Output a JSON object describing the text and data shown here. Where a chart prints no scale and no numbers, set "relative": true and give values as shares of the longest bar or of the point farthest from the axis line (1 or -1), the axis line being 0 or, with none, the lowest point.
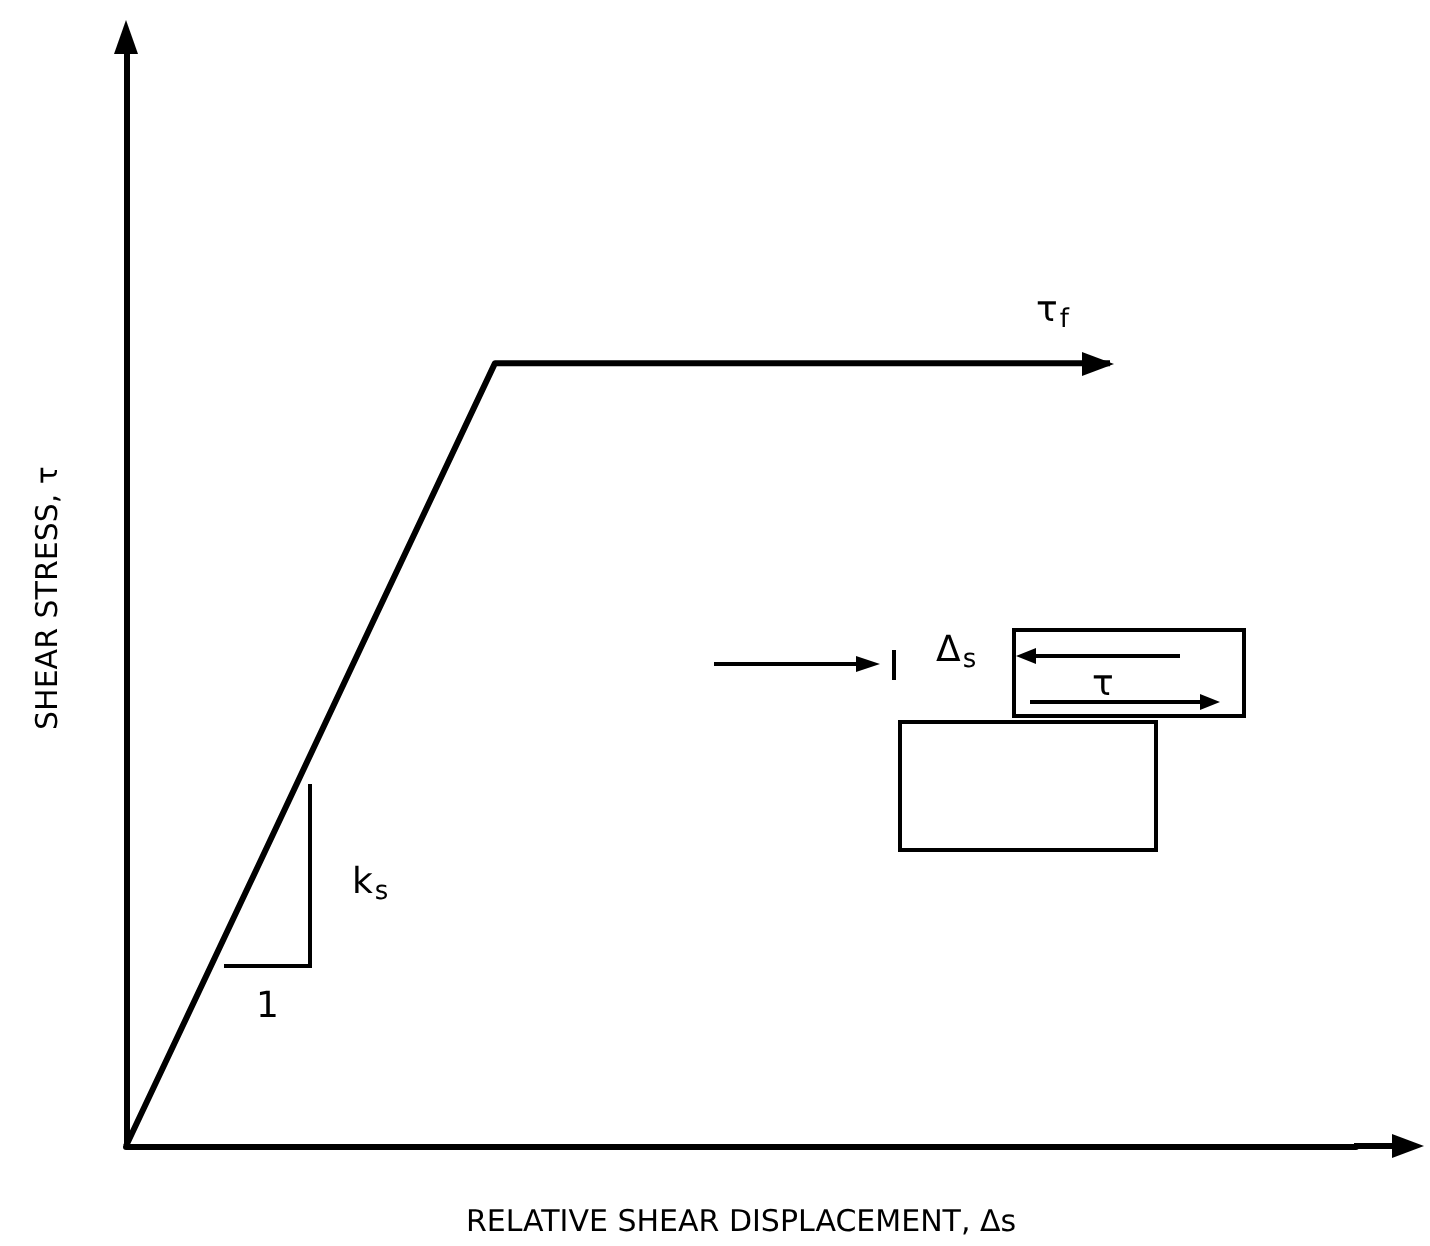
{
  "chart_data": {
    "type": "line",
    "relative": true,
    "xlabel": "RELATIVE SHEAR DISPLACEMENT, Δs",
    "ylabel": "SHEAR STRESS, τ",
    "categories": [
      null,
      null,
      null,
      null,
      null,
      null,
      null,
      null,
      null,
      null,
      null
    ],
    "series": [
      {
        "color": "#000000",
        "values": [
          0,
          0.333,
          0.667,
          1,
          1,
          1,
          1,
          1,
          1,
          null,
          null
        ]
      }
    ],
    "annotations": [
      "τ$_{f}$",
      "k$_{s}$",
      "1",
      "Δ$_{s}$",
      "τ"
    ],
    "grid": false
  }
}
